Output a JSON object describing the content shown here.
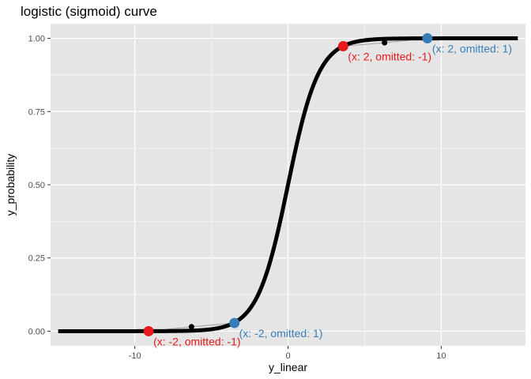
{
  "chart_data": {
    "type": "line",
    "title": "logistic (sigmoid) curve",
    "xlabel": "y_linear",
    "ylabel": "y_probability",
    "xlim": [
      -15.5,
      15.5
    ],
    "ylim": [
      -0.05,
      1.05
    ],
    "x_ticks": [
      -10,
      0,
      10
    ],
    "x_tick_labels": [
      "-10",
      "0",
      "10"
    ],
    "y_ticks": [
      0,
      0.25,
      0.5,
      0.75,
      1
    ],
    "y_tick_labels": [
      "0.00",
      "0.25",
      "0.50",
      "0.75",
      "1.00"
    ],
    "grid": true,
    "legend": "none",
    "colors": {
      "panel": "#e5e5e5",
      "grid": "#ffffff",
      "curve": "#000000",
      "omitted_neg": "#e41a1c",
      "omitted_pos": "#377eb8",
      "base_point": "#000000",
      "link": "#aaaaaa"
    },
    "series": [
      {
        "x_range": [
          -15,
          15
        ],
        "curve": "logistic"
      }
    ],
    "base_points": [
      {
        "x": -6.3,
        "y": 0.015
      },
      {
        "x": 6.3,
        "y": 0.985
      }
    ],
    "annotated_points": [
      {
        "x": -9.1,
        "y": 0.0,
        "color": "#e41a1c",
        "link_to": 0,
        "label": "(x: -2, omitted: -1)"
      },
      {
        "x": -3.5,
        "y": 0.028,
        "color": "#377eb8",
        "link_to": 0,
        "label": "(x: -2, omitted: 1)"
      },
      {
        "x": 3.6,
        "y": 0.973,
        "color": "#e41a1c",
        "link_to": 1,
        "label": "(x: 2, omitted: -1)"
      },
      {
        "x": 9.1,
        "y": 1.0,
        "color": "#377eb8",
        "link_to": 1,
        "label": "(x: 2, omitted: 1)"
      }
    ]
  }
}
